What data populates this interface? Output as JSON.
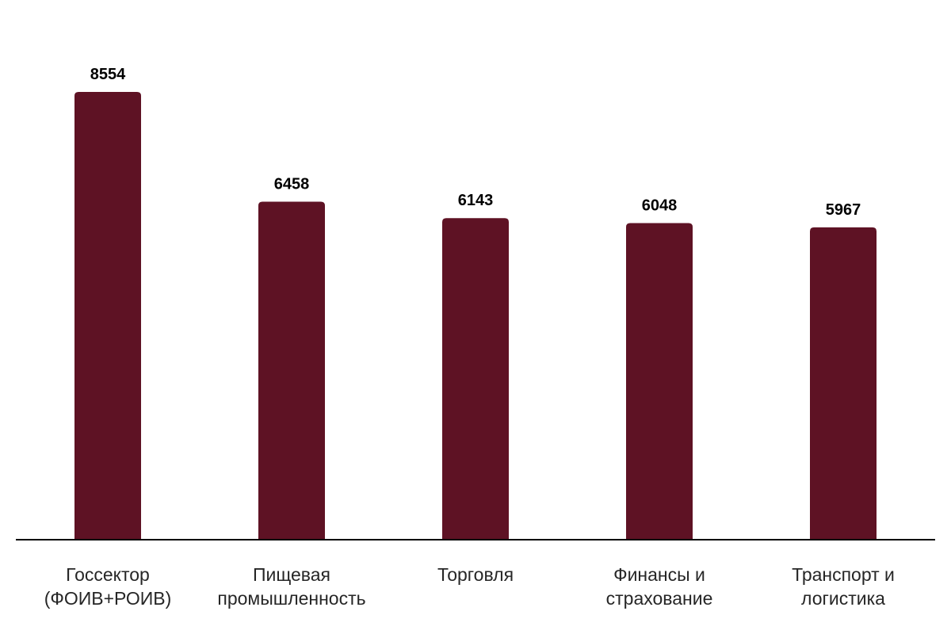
{
  "chart_data": {
    "type": "bar",
    "categories": [
      [
        "Госсектор",
        "(ФОИВ+РОИВ)"
      ],
      [
        "Пищевая",
        "промышленность"
      ],
      [
        "Торговля"
      ],
      [
        "Финансы и",
        "страхование"
      ],
      [
        "Транспорт и",
        "логистика"
      ]
    ],
    "values": [
      8554,
      6458,
      6143,
      6048,
      5967
    ],
    "value_labels": [
      "8554",
      "6458",
      "6143",
      "6048",
      "5967"
    ],
    "ylim": [
      0,
      8554
    ],
    "grid": false,
    "legend": "none",
    "colors": {
      "bar": "#5e1224",
      "axis": "#000000"
    }
  }
}
